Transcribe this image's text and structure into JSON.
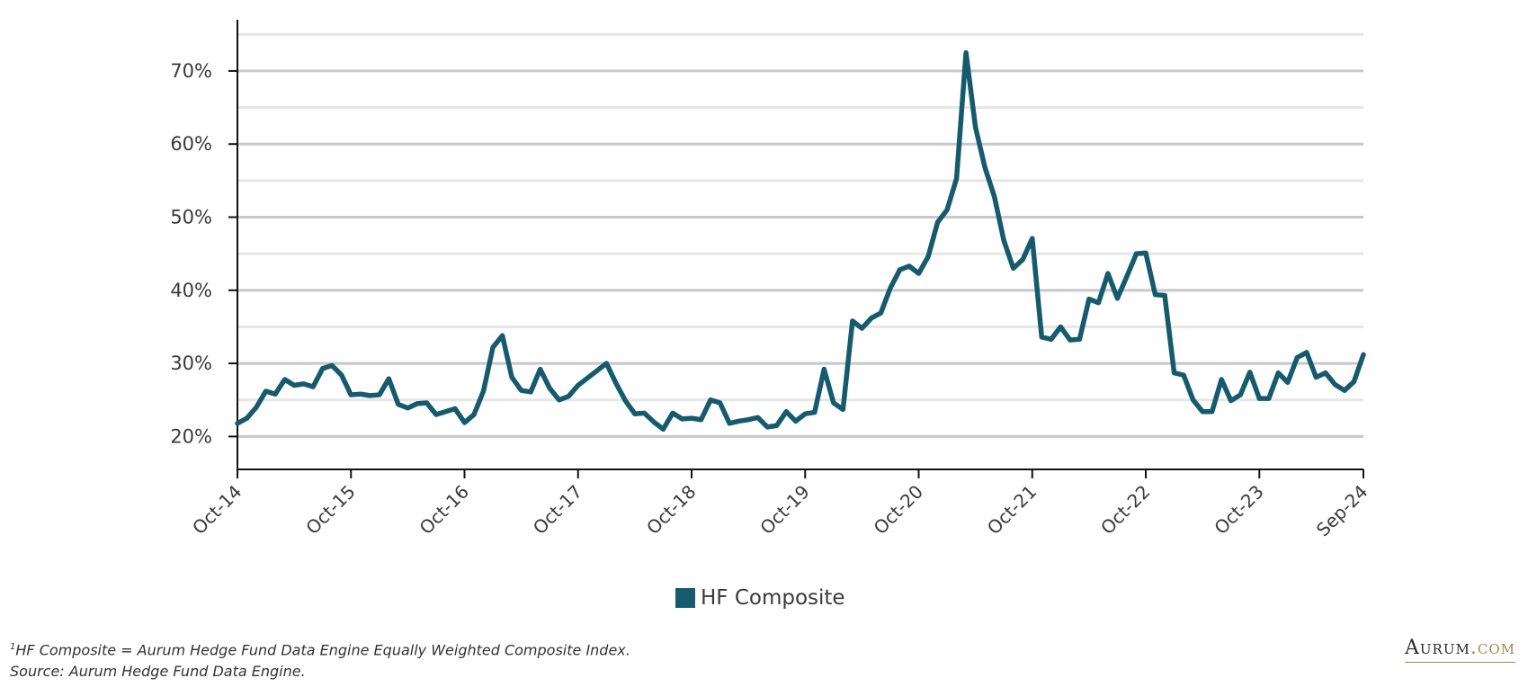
{
  "chart_data": {
    "type": "line",
    "title": "",
    "xlabel": "",
    "ylabel": "",
    "ylim": [
      15.5,
      77
    ],
    "y_ticks": [
      20,
      30,
      40,
      50,
      60,
      70
    ],
    "y_tick_labels": [
      "20%",
      "30%",
      "40%",
      "50%",
      "60%",
      "70%"
    ],
    "x_tick_labels": [
      "Oct-14",
      "Oct-15",
      "Oct-16",
      "Oct-17",
      "Oct-18",
      "Oct-19",
      "Oct-20",
      "Oct-21",
      "Oct-22",
      "Oct-23",
      "Sep-24"
    ],
    "grid": true,
    "legend_position": "bottom-center",
    "series": [
      {
        "name": "HF Composite",
        "color": "#165a6e",
        "start": "Oct-14",
        "end": "Sep-24",
        "frequency": "monthly",
        "values": [
          21.8,
          22.5,
          24.0,
          26.2,
          25.8,
          27.8,
          27.0,
          27.2,
          26.8,
          29.3,
          29.7,
          28.4,
          25.7,
          25.8,
          25.6,
          25.7,
          27.9,
          24.4,
          23.9,
          24.5,
          24.6,
          23.0,
          23.4,
          23.8,
          21.9,
          23.0,
          26.2,
          32.2,
          33.8,
          28.1,
          26.3,
          26.1,
          29.2,
          26.6,
          25.0,
          25.5,
          27.0,
          28.0,
          29.0,
          30.0,
          27.3,
          24.9,
          23.1,
          23.2,
          22.0,
          21.0,
          23.2,
          22.4,
          22.5,
          22.3,
          25.0,
          24.6,
          21.8,
          22.1,
          22.3,
          22.6,
          21.3,
          21.5,
          23.4,
          22.1,
          23.1,
          23.3,
          29.2,
          24.6,
          23.7,
          35.8,
          34.8,
          36.2,
          36.9,
          40.3,
          42.8,
          43.3,
          42.3,
          44.6,
          49.3,
          51.0,
          55.3,
          72.5,
          62.3,
          56.8,
          52.8,
          46.8,
          43.0,
          44.2,
          47.1,
          33.6,
          33.3,
          35.0,
          33.2,
          33.3,
          38.8,
          38.3,
          42.3,
          38.9,
          41.9,
          45.0,
          45.1,
          39.4,
          39.3,
          28.7,
          28.4,
          25.0,
          23.4,
          23.4,
          27.8,
          24.9,
          25.7,
          28.8,
          25.2,
          25.2,
          28.7,
          27.4,
          30.8,
          31.5,
          28.1,
          28.7,
          27.1,
          26.3,
          27.5,
          31.2
        ]
      }
    ]
  },
  "legend": {
    "label": "HF Composite",
    "color": "#165a6e"
  },
  "footnotes": {
    "marker": "1",
    "line1": "HF Composite = Aurum Hedge Fund Data Engine Equally Weighted Composite Index.",
    "line2": "Source: Aurum Hedge Fund Data Engine."
  },
  "logo": {
    "brand": "Aurum",
    "suffix": ".com"
  }
}
